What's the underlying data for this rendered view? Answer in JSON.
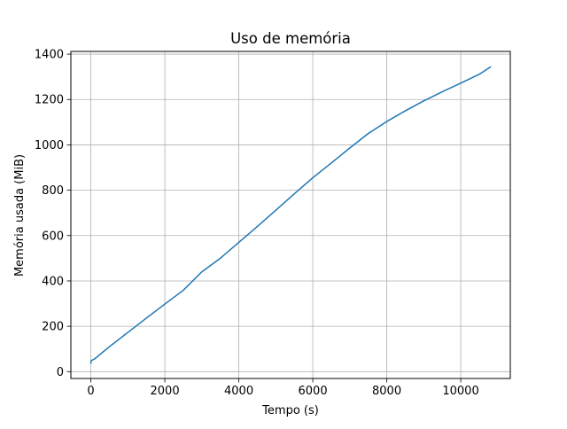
{
  "chart_data": {
    "type": "line",
    "title": "Uso de memória",
    "xlabel": "Tempo (s)",
    "ylabel": "Memória usada (MiB)",
    "xlim": [
      -540,
      11340
    ],
    "ylim": [
      -30,
      1412
    ],
    "xticks": [
      0,
      2000,
      4000,
      6000,
      8000,
      10000
    ],
    "xtick_labels": [
      "0",
      "2000",
      "4000",
      "6000",
      "8000",
      "10000"
    ],
    "yticks": [
      0,
      200,
      400,
      600,
      800,
      1000,
      1200,
      1400
    ],
    "ytick_labels": [
      "0",
      "200",
      "400",
      "600",
      "800",
      "1000",
      "1200",
      "1400"
    ],
    "grid": true,
    "series": [
      {
        "color": "#1f77b4",
        "x": [
          0,
          10,
          20,
          50,
          100,
          500,
          1000,
          1500,
          2000,
          2500,
          3000,
          3500,
          4000,
          4500,
          5000,
          5500,
          6000,
          6500,
          7000,
          7500,
          8000,
          8500,
          9000,
          9500,
          10000,
          10500,
          10800
        ],
        "y": [
          38,
          48,
          50,
          52,
          56,
          110,
          173,
          236,
          298,
          359,
          440,
          500,
          570,
          640,
          712,
          784,
          855,
          920,
          986,
          1050,
          1103,
          1150,
          1194,
          1234,
          1272,
          1311,
          1343
        ]
      }
    ]
  }
}
